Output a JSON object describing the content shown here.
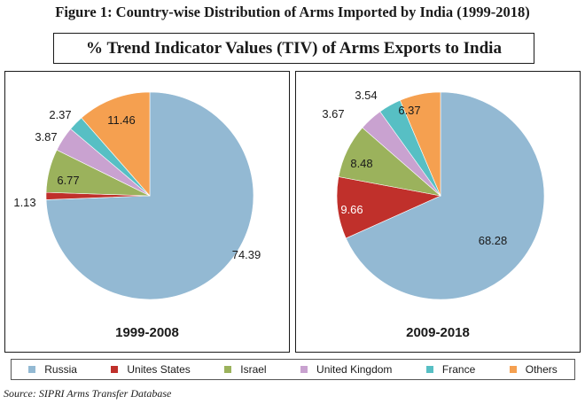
{
  "figure_title": "Figure 1: Country-wise Distribution of Arms Imported by India (1999-2018)",
  "chart_title": "% Trend Indicator Values (TIV) of Arms Exports to India",
  "source": "Source: SIPRI Arms Transfer Database",
  "colors": {
    "Russia": "#93b9d3",
    "Unites States": "#c0302b",
    "Israel": "#9bb25c",
    "United Kingdom": "#c9a2d0",
    "France": "#57bfc4",
    "Others": "#f5a050"
  },
  "legend": [
    "Russia",
    "Unites States",
    "Israel",
    "United Kingdom",
    "France",
    "Others"
  ],
  "chart_data": [
    {
      "type": "pie",
      "title": "1999-2008",
      "categories": [
        "Russia",
        "Unites States",
        "Israel",
        "United Kingdom",
        "France",
        "Others"
      ],
      "values": [
        74.39,
        1.13,
        6.77,
        3.87,
        2.37,
        11.46
      ],
      "labels": [
        "74.39",
        "1.13",
        "6.77",
        "3.87",
        "2.37",
        "11.46"
      ]
    },
    {
      "type": "pie",
      "title": "2009-2018",
      "categories": [
        "Russia",
        "Unites States",
        "Israel",
        "United Kingdom",
        "France",
        "Others"
      ],
      "values": [
        68.28,
        9.66,
        8.48,
        3.67,
        3.54,
        6.37
      ],
      "labels": [
        "68.28",
        "9.66",
        "8.48",
        "3.67",
        "3.54",
        "6.37"
      ]
    }
  ]
}
